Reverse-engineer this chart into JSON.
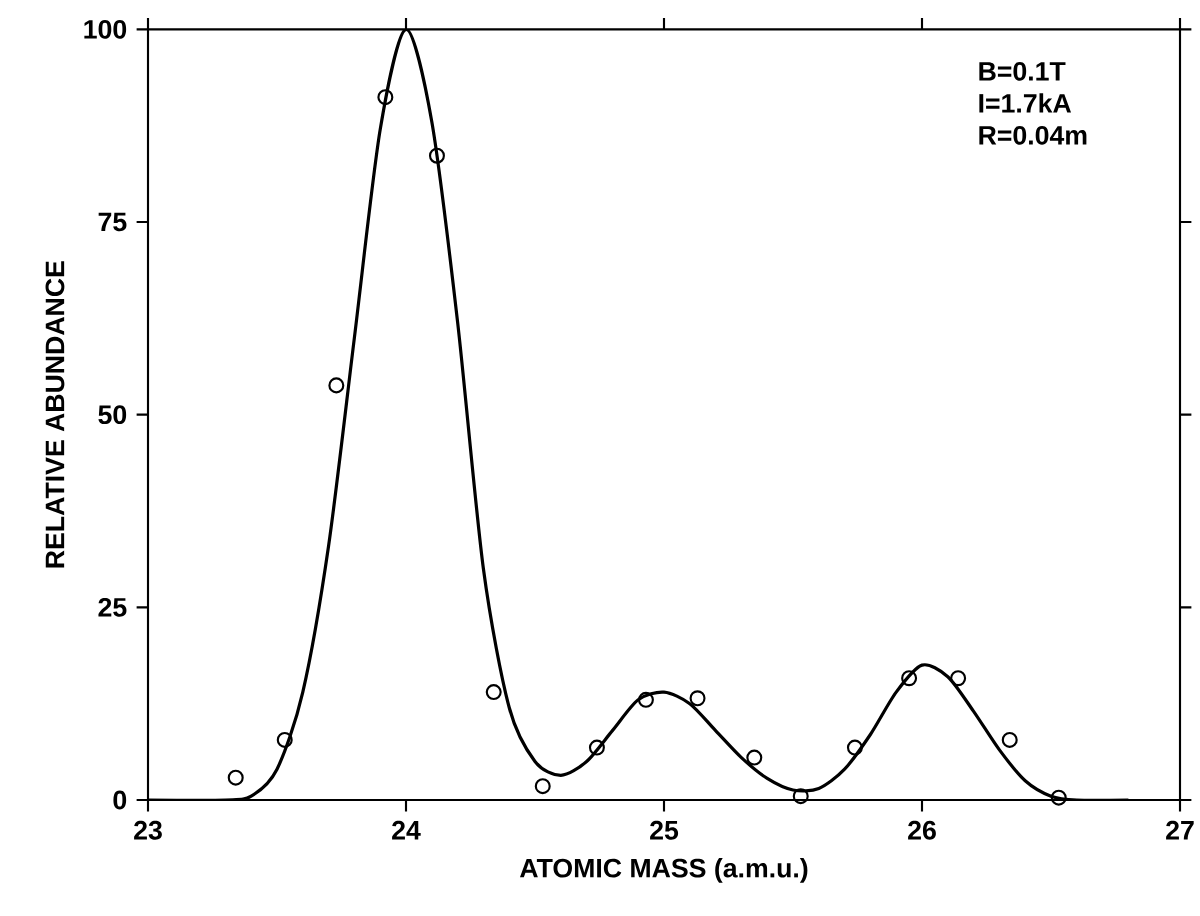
{
  "chart_data": {
    "type": "line",
    "xlabel": "ATOMIC MASS (a.m.u.)",
    "ylabel": "RELATIVE ABUNDANCE",
    "xlim": [
      23,
      27
    ],
    "ylim": [
      0,
      100
    ],
    "xticks": [
      23,
      24,
      25,
      26,
      27
    ],
    "yticks": [
      0,
      25,
      50,
      75,
      100
    ],
    "annotations": [
      "B=0.1T",
      "I=1.7kA",
      "R=0.04m"
    ],
    "series": [
      {
        "type": "scatter",
        "marker": "circle",
        "color": "#000000",
        "x": [
          23.34,
          23.53,
          23.73,
          23.92,
          24.12,
          24.34,
          24.53,
          24.74,
          24.93,
          25.13,
          25.35,
          25.53,
          25.74,
          25.95,
          26.14,
          26.34,
          26.53
        ],
        "values": [
          2.9,
          7.8,
          53.8,
          91.2,
          83.6,
          14.0,
          1.8,
          6.8,
          13.0,
          13.2,
          5.5,
          0.5,
          6.8,
          15.8,
          15.8,
          7.8,
          0.3
        ]
      },
      {
        "marker": "none",
        "color": "#000000",
        "x": [
          23.0,
          23.3,
          23.4,
          23.5,
          23.6,
          23.7,
          23.8,
          23.9,
          24.0,
          24.1,
          24.2,
          24.3,
          24.4,
          24.5,
          24.6,
          24.7,
          24.8,
          24.9,
          25.0,
          25.1,
          25.2,
          25.3,
          25.4,
          25.5,
          25.6,
          25.7,
          25.8,
          25.9,
          26.0,
          26.1,
          26.2,
          26.3,
          26.4,
          26.5,
          26.6,
          26.8
        ],
        "values": [
          0,
          0,
          0.5,
          4,
          14,
          33,
          60,
          87,
          100,
          88,
          62,
          30,
          12,
          5,
          3.2,
          5,
          9,
          13,
          14,
          12.5,
          9,
          5.5,
          2.8,
          1.3,
          1.5,
          4,
          8.5,
          14,
          17.5,
          16,
          11.5,
          6.5,
          2.5,
          0.5,
          0,
          0
        ]
      }
    ]
  }
}
